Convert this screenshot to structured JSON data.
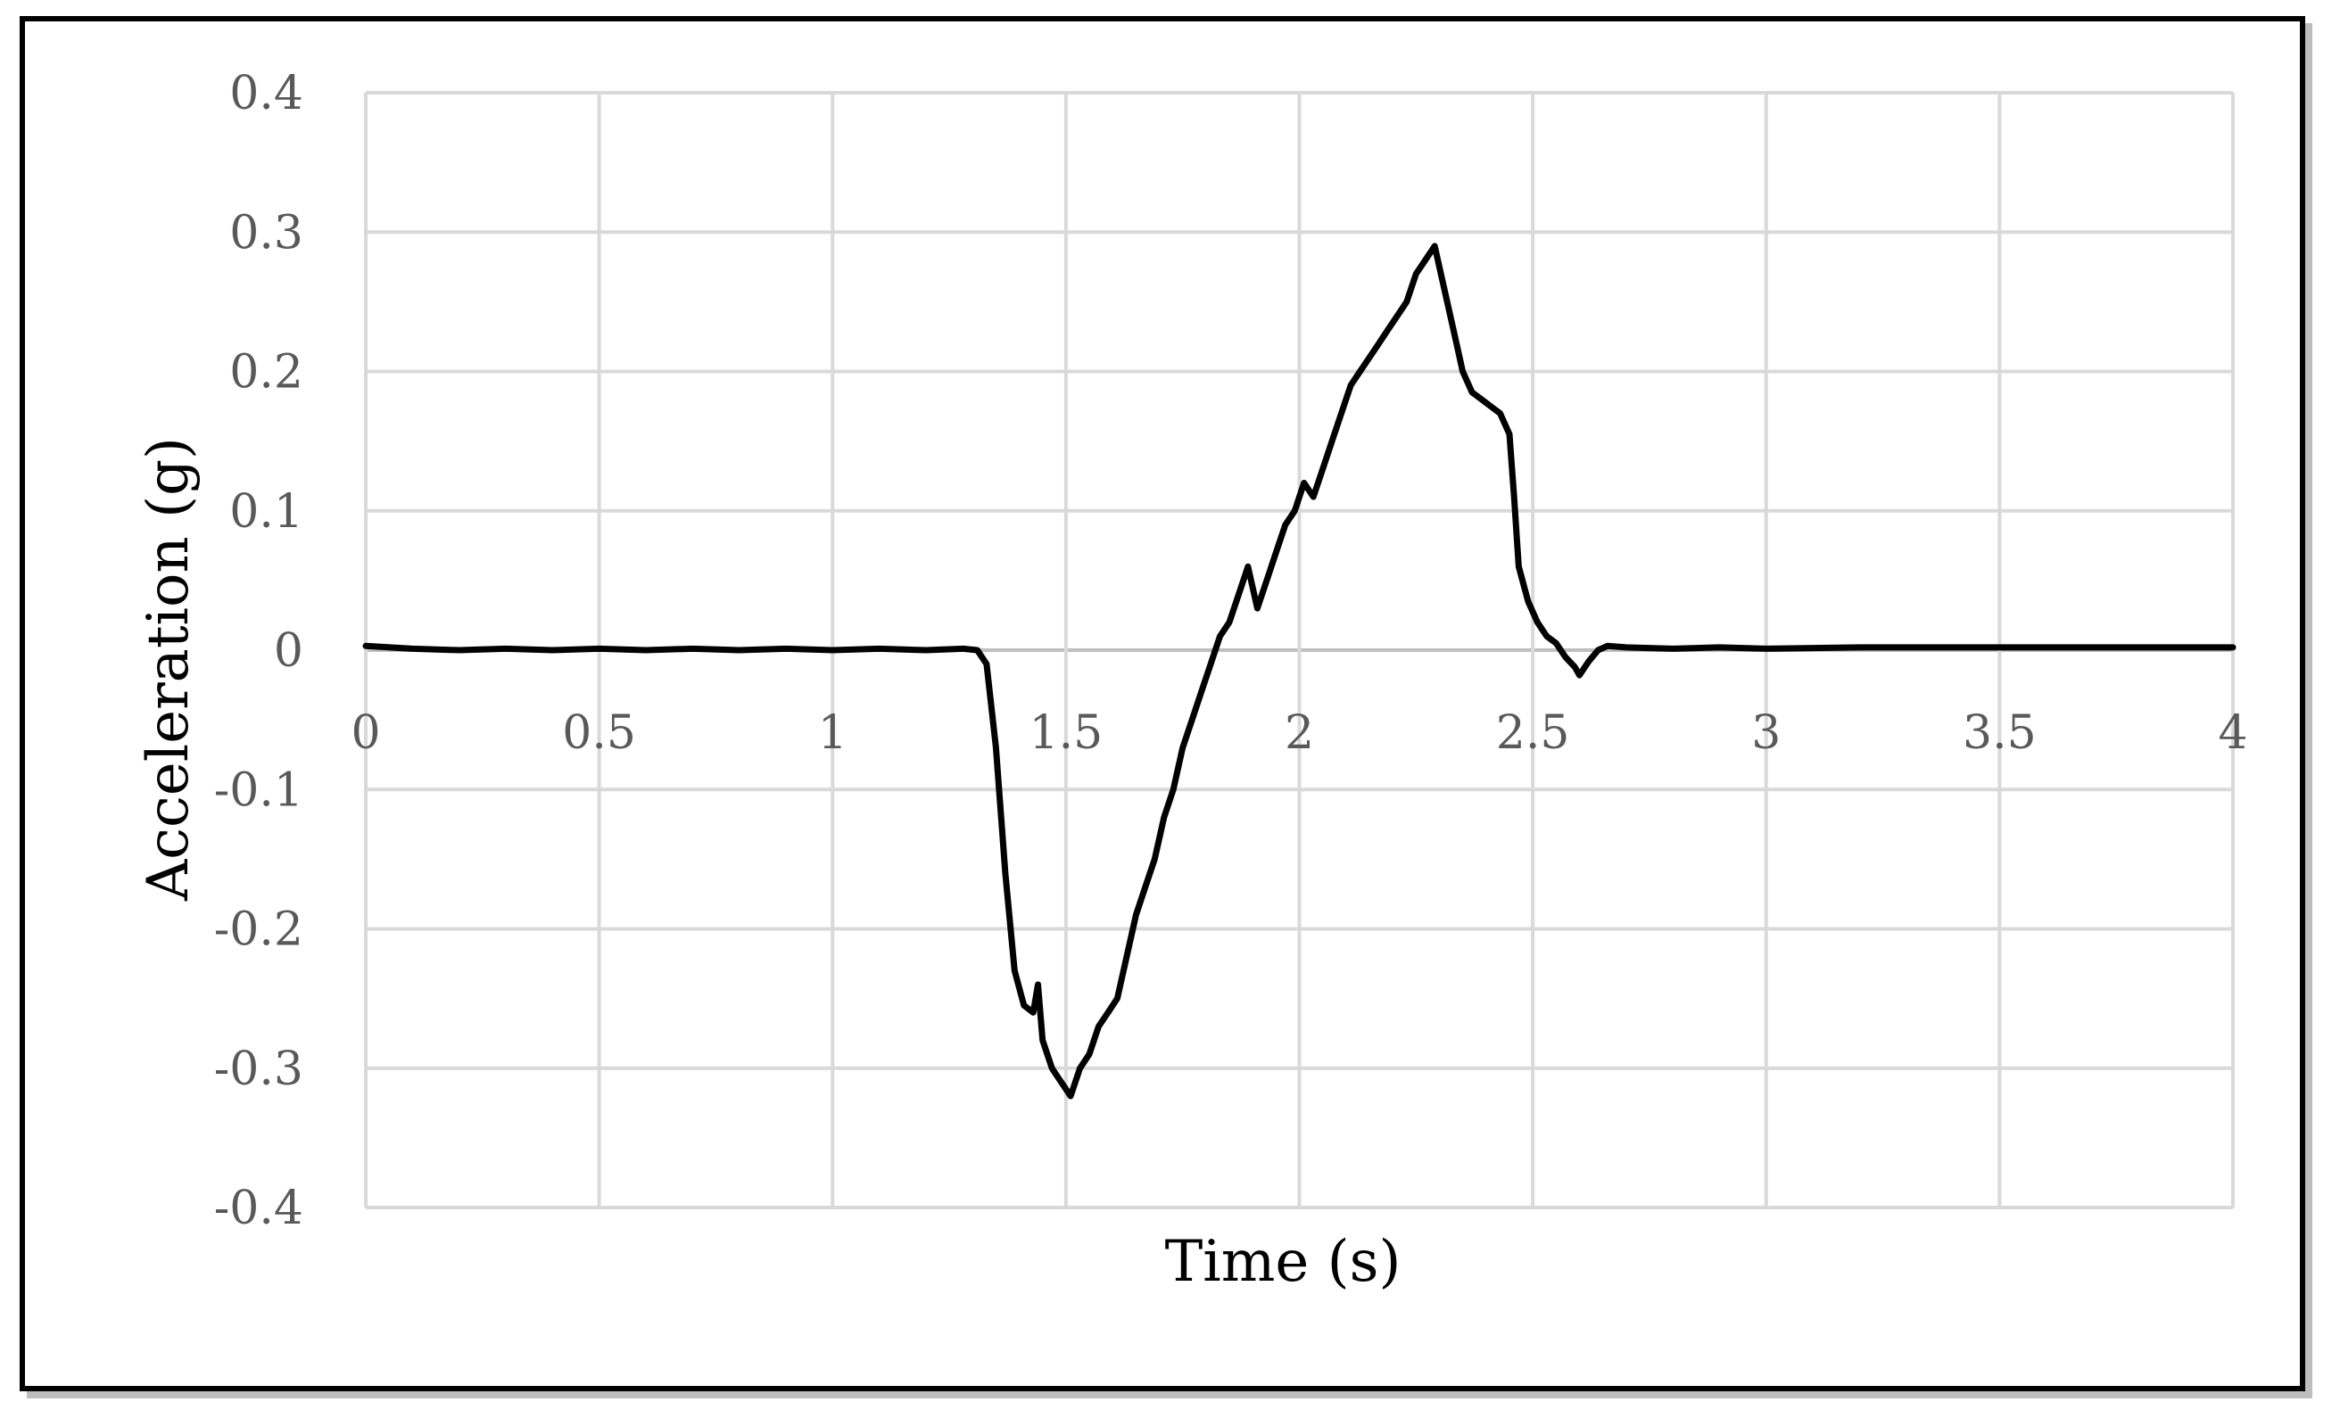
{
  "chart_data": {
    "type": "line",
    "xlabel": "Time (s)",
    "ylabel": "Acceleration (g)",
    "xlim": [
      0,
      4
    ],
    "ylim": [
      -0.4,
      0.4
    ],
    "x_ticks": [
      "0",
      "0.5",
      "1",
      "1.5",
      "2",
      "2.5",
      "3",
      "3.5",
      "4"
    ],
    "y_ticks": [
      "0.4",
      "0.3",
      "0.2",
      "0.1",
      "0",
      "-0.1",
      "-0.2",
      "-0.3",
      "-0.4"
    ],
    "grid": true,
    "legend": "none",
    "series": [
      {
        "color": "#000000",
        "points": [
          [
            0.0,
            0.003
          ],
          [
            0.1,
            0.001
          ],
          [
            0.2,
            0.0
          ],
          [
            0.3,
            0.001
          ],
          [
            0.4,
            0.0
          ],
          [
            0.5,
            0.001
          ],
          [
            0.6,
            0.0
          ],
          [
            0.7,
            0.001
          ],
          [
            0.8,
            0.0
          ],
          [
            0.9,
            0.001
          ],
          [
            1.0,
            0.0
          ],
          [
            1.1,
            0.001
          ],
          [
            1.2,
            0.0
          ],
          [
            1.28,
            0.001
          ],
          [
            1.31,
            0.0
          ],
          [
            1.33,
            -0.01
          ],
          [
            1.35,
            -0.07
          ],
          [
            1.37,
            -0.16
          ],
          [
            1.39,
            -0.23
          ],
          [
            1.41,
            -0.255
          ],
          [
            1.43,
            -0.26
          ],
          [
            1.44,
            -0.24
          ],
          [
            1.45,
            -0.28
          ],
          [
            1.47,
            -0.3
          ],
          [
            1.49,
            -0.31
          ],
          [
            1.51,
            -0.32
          ],
          [
            1.53,
            -0.3
          ],
          [
            1.55,
            -0.29
          ],
          [
            1.57,
            -0.27
          ],
          [
            1.59,
            -0.26
          ],
          [
            1.61,
            -0.25
          ],
          [
            1.63,
            -0.22
          ],
          [
            1.65,
            -0.19
          ],
          [
            1.67,
            -0.17
          ],
          [
            1.69,
            -0.15
          ],
          [
            1.71,
            -0.12
          ],
          [
            1.73,
            -0.1
          ],
          [
            1.75,
            -0.07
          ],
          [
            1.77,
            -0.05
          ],
          [
            1.79,
            -0.03
          ],
          [
            1.81,
            -0.01
          ],
          [
            1.83,
            0.01
          ],
          [
            1.85,
            0.02
          ],
          [
            1.87,
            0.04
          ],
          [
            1.89,
            0.06
          ],
          [
            1.91,
            0.03
          ],
          [
            1.93,
            0.05
          ],
          [
            1.95,
            0.07
          ],
          [
            1.97,
            0.09
          ],
          [
            1.99,
            0.1
          ],
          [
            2.01,
            0.12
          ],
          [
            2.03,
            0.11
          ],
          [
            2.05,
            0.13
          ],
          [
            2.07,
            0.15
          ],
          [
            2.09,
            0.17
          ],
          [
            2.11,
            0.19
          ],
          [
            2.13,
            0.2
          ],
          [
            2.15,
            0.21
          ],
          [
            2.17,
            0.22
          ],
          [
            2.19,
            0.23
          ],
          [
            2.21,
            0.24
          ],
          [
            2.23,
            0.25
          ],
          [
            2.25,
            0.27
          ],
          [
            2.27,
            0.28
          ],
          [
            2.29,
            0.29
          ],
          [
            2.31,
            0.26
          ],
          [
            2.33,
            0.23
          ],
          [
            2.35,
            0.2
          ],
          [
            2.37,
            0.185
          ],
          [
            2.39,
            0.18
          ],
          [
            2.41,
            0.175
          ],
          [
            2.43,
            0.17
          ],
          [
            2.45,
            0.155
          ],
          [
            2.46,
            0.11
          ],
          [
            2.47,
            0.06
          ],
          [
            2.49,
            0.035
          ],
          [
            2.51,
            0.02
          ],
          [
            2.53,
            0.01
          ],
          [
            2.55,
            0.005
          ],
          [
            2.57,
            -0.005
          ],
          [
            2.59,
            -0.012
          ],
          [
            2.6,
            -0.018
          ],
          [
            2.62,
            -0.008
          ],
          [
            2.64,
            0.0
          ],
          [
            2.66,
            0.003
          ],
          [
            2.7,
            0.002
          ],
          [
            2.8,
            0.001
          ],
          [
            2.9,
            0.002
          ],
          [
            3.0,
            0.001
          ],
          [
            3.2,
            0.002
          ],
          [
            3.4,
            0.002
          ],
          [
            3.6,
            0.002
          ],
          [
            3.8,
            0.002
          ],
          [
            4.0,
            0.002
          ]
        ]
      }
    ]
  }
}
